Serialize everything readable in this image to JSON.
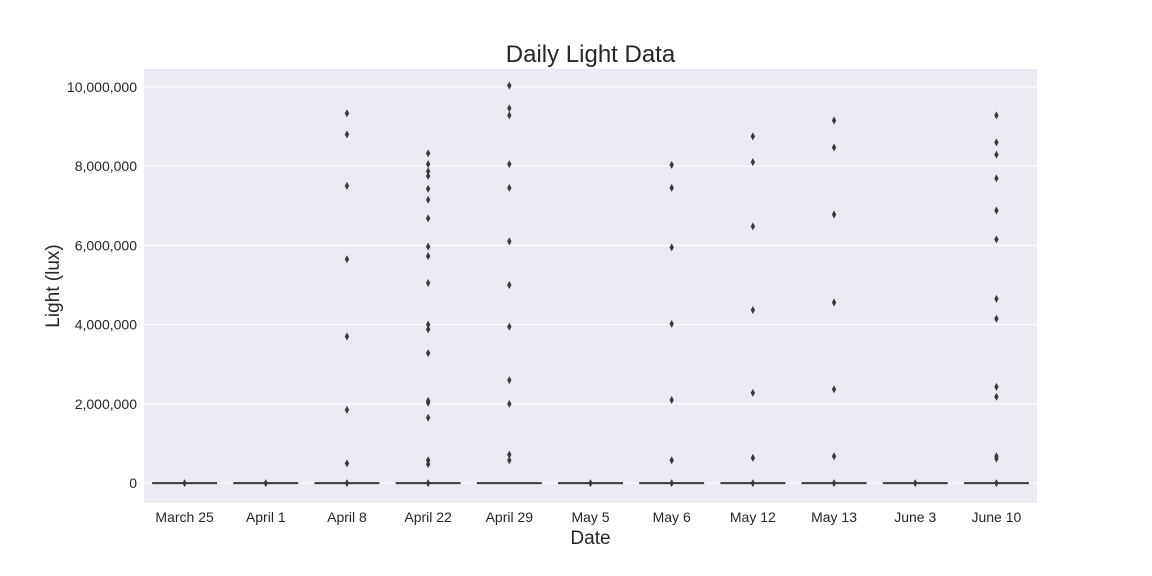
{
  "chart_data": {
    "type": "box",
    "title": "Daily Light Data",
    "xlabel": "Date",
    "ylabel": "Light (lux)",
    "ylim": [
      -500000,
      10450000
    ],
    "yticks": [
      0,
      2000000,
      4000000,
      6000000,
      8000000,
      10000000
    ],
    "ytick_labels": [
      "0",
      "2,000,000",
      "4,000,000",
      "6,000,000",
      "8,000,000",
      "10,000,000"
    ],
    "grid": true,
    "box_value": 0,
    "categories": [
      "March 25",
      "April 1",
      "April 8",
      "April 22",
      "April 29",
      "May 5",
      "May 6",
      "May 12",
      "May 13",
      "June 3",
      "June 10"
    ],
    "outliers": [
      [
        0
      ],
      [
        0
      ],
      [
        0,
        500000,
        1850000,
        3700000,
        5650000,
        7500000,
        8800000,
        9330000
      ],
      [
        0,
        480000,
        580000,
        1650000,
        2030000,
        2080000,
        3280000,
        3880000,
        4000000,
        5050000,
        5730000,
        5970000,
        6680000,
        7150000,
        7430000,
        7750000,
        7870000,
        8050000,
        8320000
      ],
      [
        580000,
        720000,
        2000000,
        2600000,
        3950000,
        5000000,
        6100000,
        7450000,
        8050000,
        9280000,
        9460000,
        10030000
      ],
      [
        0
      ],
      [
        0,
        580000,
        2100000,
        4020000,
        5950000,
        7450000,
        8030000
      ],
      [
        0,
        640000,
        2280000,
        4370000,
        6480000,
        8100000,
        8750000
      ],
      [
        0,
        680000,
        2370000,
        4560000,
        6780000,
        8470000,
        9150000
      ],
      [
        0
      ],
      [
        0,
        620000,
        680000,
        2180000,
        2430000,
        4150000,
        4650000,
        6150000,
        6880000,
        7690000,
        8290000,
        8600000,
        9280000
      ]
    ],
    "colors": {
      "background": "#EAEAF2",
      "grid": "#FFFFFF",
      "marks": "#3A3A3A",
      "text": "#262626"
    }
  }
}
